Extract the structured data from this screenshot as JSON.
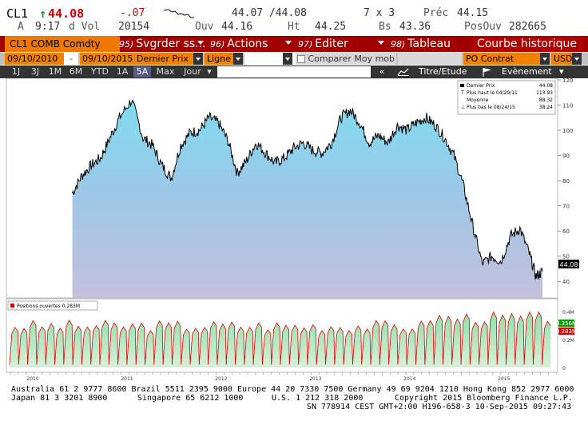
{
  "quote": {
    "ticker": "CL1",
    "last": "44.08",
    "change": "-.07",
    "bid_ask": "44.07 /44.08",
    "size": "7 x 3",
    "prev_label": "Préc",
    "prev": "44.15",
    "time_label": "A",
    "time": "9:17",
    "vol_label": "d Vol",
    "volume": "20154",
    "open_label": "Ouv",
    "open": "44.16",
    "high_label": "Ht",
    "high": "44.25",
    "low_label": "Bs",
    "low": "43.36",
    "oi_label": "PosOuv",
    "oi": "282665"
  },
  "menu": {
    "security": "CL1 COMB Comdty",
    "items": [
      {
        "num": "95)",
        "label": "Svgrder ss..."
      },
      {
        "num": "96)",
        "label": "Actions"
      },
      {
        "num": "97)",
        "label": "Editer"
      },
      {
        "num": "98)",
        "label": "Tableau"
      }
    ],
    "title": "Courbe historique"
  },
  "fields": {
    "start_date": "09/10/2010",
    "dash": "-",
    "end_date": "09/10/2015",
    "price_field": "Dernier Prix",
    "style": "Ligne",
    "compare": "Comparer Moy mob",
    "lower_field": "PO Contrat",
    "currency": "USD"
  },
  "periods": [
    "1J",
    "3J",
    "1M",
    "6M",
    "YTD",
    "1A",
    "5A",
    "Max"
  ],
  "active_period": "5A",
  "period_freq": "Jour",
  "toolbar": {
    "collapse": "«",
    "title_study": "Titre/Etude",
    "event": "Evènement"
  },
  "legend": {
    "last_price_label": "Dernier Prix",
    "last_price": "44.08",
    "high_label": "Plus haut le 04/29/11",
    "high_val": "113.93",
    "avg_label": "Moyenne",
    "avg_val": "88.32",
    "low_label": "Plus bas le 08/24/15",
    "low_val": "38.24",
    "lower_label": "Positions ouvertes 0.283M"
  },
  "chart_data": {
    "type": "area",
    "title": "CL1 COMB Comdty — Dernier Prix (Jour, 5A)",
    "x_tick_labels": [
      "2010",
      "2011",
      "2012",
      "2013",
      "2014",
      "2015"
    ],
    "y_tick_labels": [
      "120",
      "110",
      "100",
      "90",
      "80",
      "70",
      "60",
      "50",
      "40"
    ],
    "ylim": [
      35,
      120
    ],
    "series": [
      {
        "name": "Dernier Prix",
        "x": [
          2010.7,
          2010.8,
          2010.9,
          2011.0,
          2011.1,
          2011.2,
          2011.33,
          2011.45,
          2011.55,
          2011.65,
          2011.75,
          2011.85,
          2011.95,
          2012.05,
          2012.15,
          2012.25,
          2012.35,
          2012.45,
          2012.55,
          2012.65,
          2012.75,
          2012.85,
          2012.95,
          2013.05,
          2013.15,
          2013.25,
          2013.35,
          2013.45,
          2013.55,
          2013.65,
          2013.75,
          2013.85,
          2013.95,
          2014.05,
          2014.15,
          2014.25,
          2014.35,
          2014.45,
          2014.55,
          2014.65,
          2014.75,
          2014.85,
          2014.95,
          2015.05,
          2015.15,
          2015.25,
          2015.35,
          2015.45,
          2015.55,
          2015.62,
          2015.69
        ],
        "values": [
          75,
          82,
          86,
          89,
          97,
          105,
          112,
          97,
          94,
          86,
          81,
          94,
          99,
          100,
          105,
          103,
          96,
          83,
          88,
          95,
          91,
          87,
          89,
          93,
          95,
          92,
          91,
          95,
          105,
          108,
          103,
          95,
          98,
          95,
          102,
          100,
          103,
          105,
          102,
          97,
          90,
          78,
          62,
          47,
          50,
          48,
          58,
          61,
          51,
          42,
          44
        ]
      },
      {
        "name": "Positions ouvertes",
        "unit": "M",
        "y_tick_labels": [
          "0.4M",
          "0.2M",
          "0"
        ],
        "last_values": [
          "0.356M",
          "0.283M"
        ]
      }
    ],
    "annotations": [
      {
        "label": "last",
        "value": "44.08"
      }
    ]
  },
  "footer": {
    "line1": "Australia 61 2 9777 8600 Brazil 5511 2395 9000 Europe 44 20 7330 7500 Germany 49 69 9204 1210 Hong Kong 852 2977 6000",
    "line2a": "Japan 81 3 3201 8900",
    "line2b": "Singapore 65 6212 1000",
    "line2c": "U.S. 1 212 318 2000",
    "line2d": "Copyright 2015 Bloomberg Finance L.P.",
    "line3": "SN 778914 CEST GMT+2:00 H196-658-3 10-Sep-2015 09:27:43"
  },
  "colors": {
    "accent_red": "#a00000",
    "orange": "#f08000",
    "price_line": "#000000",
    "oi_line": "#e00000"
  }
}
